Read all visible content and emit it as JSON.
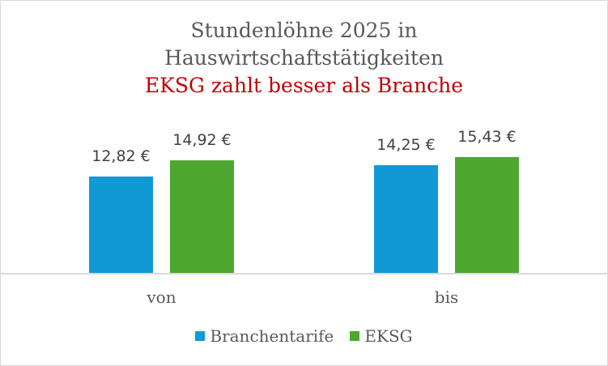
{
  "chart_data": {
    "type": "bar",
    "title": "Stundenlöhne 2025 in Hauswirtschaftstätigkeiten",
    "subtitle": "EKSG zahlt besser als Branche",
    "categories": [
      "von",
      "bis"
    ],
    "series": [
      {
        "name": "Branchentarife",
        "color": "#1199d6",
        "values": [
          12.82,
          14.25
        ],
        "labels": [
          "12,82 €",
          "14,25 €"
        ]
      },
      {
        "name": "EKSG",
        "color": "#4ea72e",
        "values": [
          14.92,
          15.43
        ],
        "labels": [
          "14,92 €",
          "15,43 €"
        ]
      }
    ],
    "xlabel": "",
    "ylabel": "",
    "ylim": [
      0,
      16
    ],
    "grid": false,
    "legend_position": "bottom"
  },
  "title": {
    "line1": "Stundenlöhne 2025 in",
    "line2": "Hauswirtschaftstätigkeiten",
    "line3": "EKSG zahlt besser als Branche"
  },
  "colors": {
    "title": "#595959",
    "subtitle": "#c00000",
    "branche": "#1199d6",
    "eksg": "#4ea72e"
  }
}
